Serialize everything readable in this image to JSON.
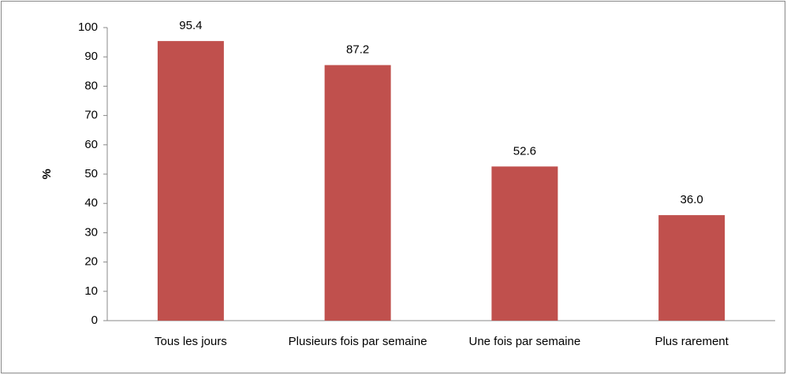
{
  "chart_data": {
    "type": "bar",
    "y_label": "%",
    "categories": [
      "Tous les jours",
      "Plusieurs fois par semaine",
      "Une fois par semaine",
      "Plus rarement"
    ],
    "values": [
      95.4,
      87.2,
      52.6,
      36.0
    ],
    "value_labels": [
      "95.4",
      "87.2",
      "52.6",
      "36.0"
    ],
    "color": "#c0504d",
    "ylim": [
      0,
      100
    ],
    "yticks": [
      0,
      10,
      20,
      30,
      40,
      50,
      60,
      70,
      80,
      90,
      100
    ],
    "grid": false
  }
}
